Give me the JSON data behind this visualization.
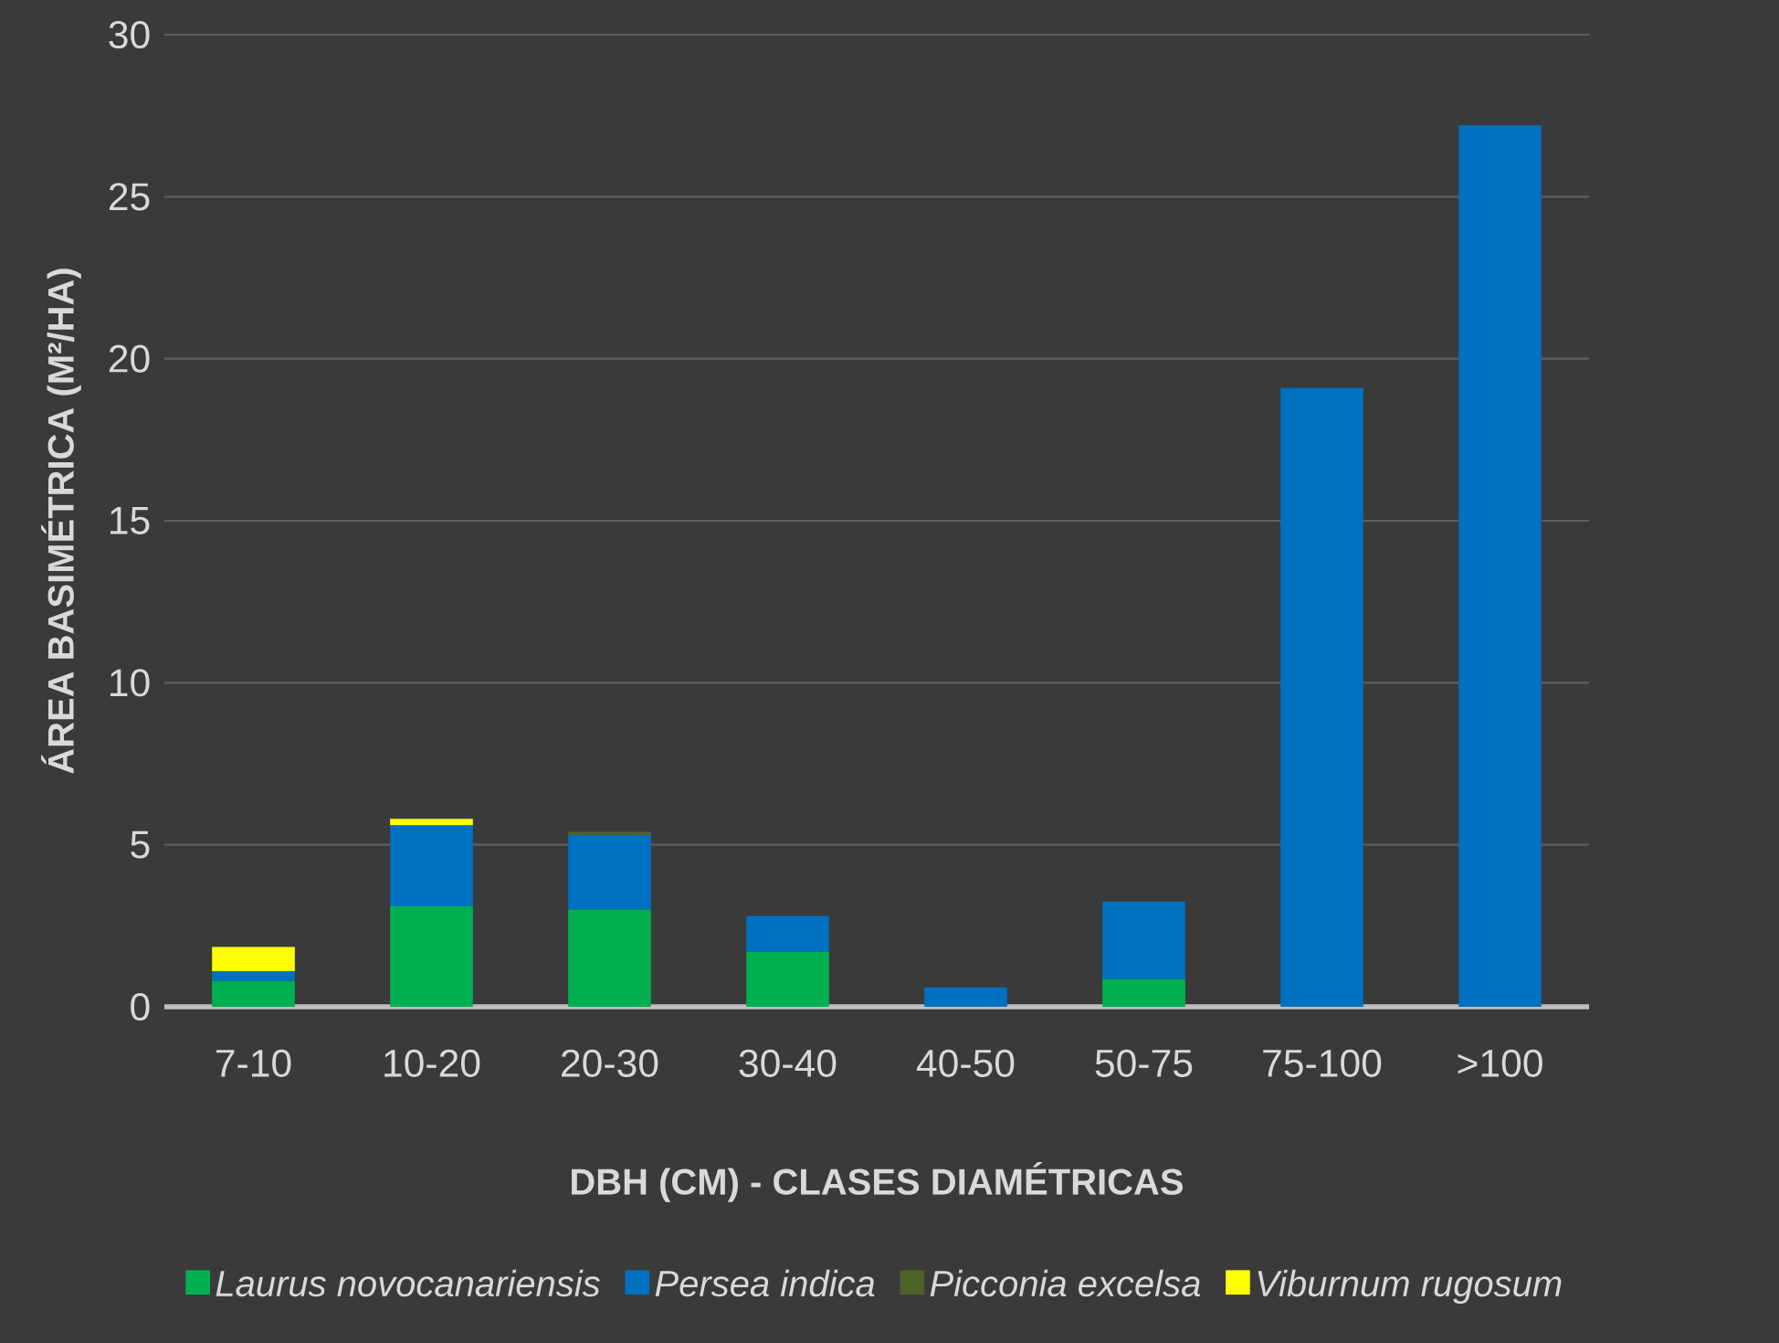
{
  "chart_data": {
    "type": "bar",
    "stacked": true,
    "xlabel": "DBH (CM)  - CLASES DIAMÉTRICAS",
    "ylabel": "ÁREA BASIMÉTRICA (M²/HA)",
    "categories": [
      "7-10",
      "10-20",
      "20-30",
      "30-40",
      "40-50",
      "50-75",
      "75-100",
      ">100"
    ],
    "series": [
      {
        "name": "Laurus novocanariensis",
        "color": "#00b050",
        "values": [
          0.8,
          3.1,
          3.0,
          1.7,
          0,
          0.85,
          0,
          0
        ]
      },
      {
        "name": "Persea indica",
        "color": "#0070c0",
        "values": [
          0.3,
          2.5,
          2.3,
          1.1,
          0.6,
          2.4,
          19.1,
          27.2
        ]
      },
      {
        "name": "Picconia excelsa",
        "color": "#4f6228",
        "values": [
          0,
          0,
          0.1,
          0,
          0,
          0,
          0,
          0
        ]
      },
      {
        "name": "Viburnum rugosum",
        "color": "#ffff00",
        "values": [
          0.75,
          0.2,
          0,
          0,
          0,
          0,
          0,
          0
        ]
      }
    ],
    "ylim": [
      0,
      30
    ],
    "yticks": [
      0,
      5,
      10,
      15,
      20,
      25,
      30
    ],
    "grid": "y",
    "legend": "bottom"
  }
}
